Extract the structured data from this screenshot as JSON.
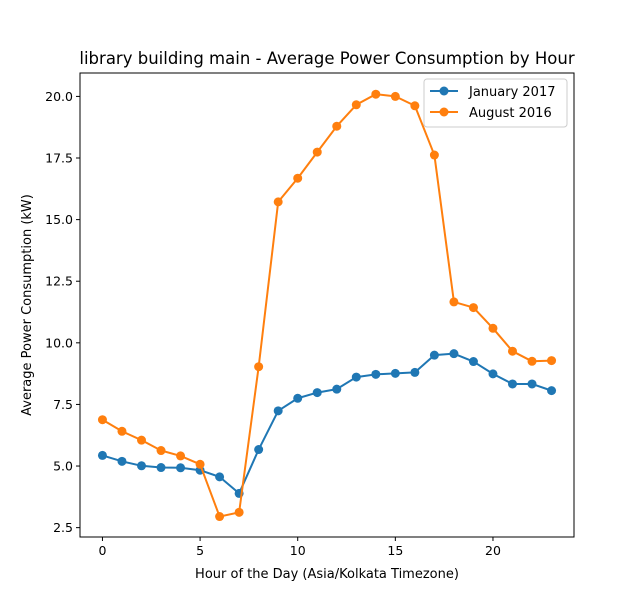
{
  "chart_data": {
    "type": "line",
    "title": "library building main - Average Power Consumption by Hour",
    "xlabel": "Hour of the Day (Asia/Kolkata Timezone)",
    "ylabel": "Average Power Consumption (kW)",
    "xlim": [
      -1.15,
      24.15
    ],
    "ylim": [
      2.12,
      20.95
    ],
    "xticks": [
      0,
      5,
      10,
      15,
      20
    ],
    "xtick_labels": [
      "0",
      "5",
      "10",
      "15",
      "20"
    ],
    "yticks": [
      2.5,
      5.0,
      7.5,
      10.0,
      12.5,
      15.0,
      17.5,
      20.0
    ],
    "ytick_labels": [
      "2.5",
      "5.0",
      "7.5",
      "10.0",
      "12.5",
      "15.0",
      "17.5",
      "20.0"
    ],
    "grid": false,
    "legend_position": "top-right",
    "x": [
      0,
      1,
      2,
      3,
      4,
      5,
      6,
      7,
      8,
      9,
      10,
      11,
      12,
      13,
      14,
      15,
      16,
      17,
      18,
      19,
      20,
      21,
      22,
      23
    ],
    "series": [
      {
        "name": "January 2017",
        "color": "#1f77b4",
        "values": [
          5.43,
          5.19,
          5.01,
          4.94,
          4.93,
          4.83,
          4.56,
          3.89,
          5.67,
          7.24,
          7.75,
          7.98,
          8.12,
          8.61,
          8.72,
          8.76,
          8.8,
          9.5,
          9.56,
          9.24,
          8.74,
          8.33,
          8.33,
          8.06
        ]
      },
      {
        "name": "August 2016",
        "color": "#ff7f0e",
        "values": [
          6.88,
          6.41,
          6.05,
          5.63,
          5.41,
          5.07,
          2.95,
          3.12,
          9.03,
          15.72,
          16.68,
          17.74,
          18.79,
          19.66,
          20.09,
          20.0,
          19.62,
          17.62,
          11.66,
          11.43,
          10.59,
          9.66,
          9.25,
          9.28
        ]
      }
    ]
  }
}
